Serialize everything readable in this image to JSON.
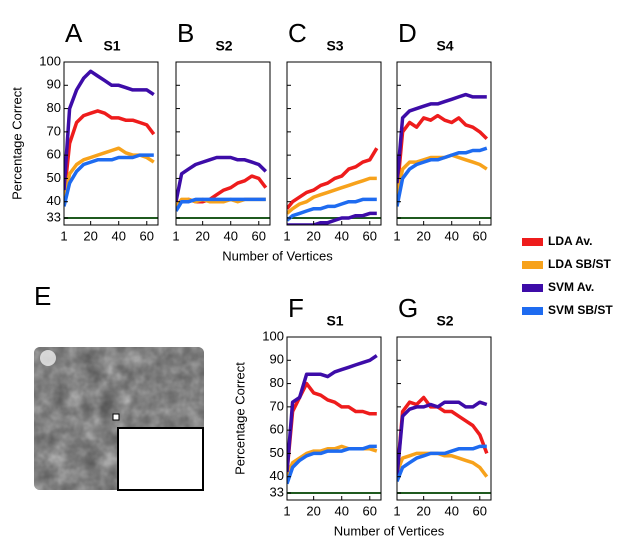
{
  "chart_data": [
    {
      "type": "line",
      "panel": "A",
      "title": "S1",
      "ylabel": "Percentage Correct",
      "xlabel": "Number of Vertices",
      "ytick_labels": true,
      "x": [
        1,
        5,
        10,
        15,
        20,
        25,
        30,
        35,
        40,
        45,
        50,
        55,
        60,
        65
      ],
      "xlim": [
        1,
        68
      ],
      "xticks": [
        1,
        20,
        40,
        60
      ],
      "ylim": [
        30,
        100
      ],
      "yticks": [
        33,
        40,
        50,
        60,
        70,
        80,
        90,
        100
      ],
      "chance": 33,
      "chance_color": "#1f5a1f",
      "series": [
        {
          "name": "LDA Av.",
          "color": "#ee1c1c",
          "values": [
            42,
            65,
            74,
            77,
            78,
            79,
            78,
            76,
            76,
            75,
            75,
            74,
            73,
            69
          ]
        },
        {
          "name": "LDA SB/ST",
          "color": "#f7a21b",
          "values": [
            40,
            52,
            56,
            58,
            59,
            60,
            61,
            62,
            63,
            61,
            60,
            60,
            59,
            57
          ]
        },
        {
          "name": "SVM Av.",
          "color": "#3d0ca8",
          "values": [
            45,
            80,
            88,
            93,
            96,
            94,
            92,
            90,
            90,
            89,
            88,
            88,
            88,
            86
          ]
        },
        {
          "name": "SVM SB/ST",
          "color": "#1e6bf0",
          "values": [
            38,
            48,
            53,
            56,
            57,
            58,
            58,
            58,
            59,
            59,
            59,
            60,
            60,
            60
          ]
        }
      ]
    },
    {
      "type": "line",
      "panel": "B",
      "title": "S2",
      "ytick_labels": false,
      "x": [
        1,
        5,
        10,
        15,
        20,
        25,
        30,
        35,
        40,
        45,
        50,
        55,
        60,
        65
      ],
      "xlim": [
        1,
        68
      ],
      "xticks": [
        1,
        20,
        40,
        60
      ],
      "ylim": [
        30,
        100
      ],
      "yticks": [
        33,
        40,
        50,
        60,
        70,
        80,
        90,
        100
      ],
      "chance": 33,
      "chance_color": "#1f5a1f",
      "series": [
        {
          "color": "#ee1c1c",
          "values": [
            38,
            40,
            41,
            40,
            40,
            41,
            43,
            45,
            46,
            48,
            49,
            51,
            50,
            46
          ]
        },
        {
          "color": "#f7a21b",
          "values": [
            38,
            41,
            41,
            40,
            41,
            40,
            40,
            40,
            41,
            40,
            41,
            41,
            41,
            41
          ]
        },
        {
          "color": "#3d0ca8",
          "values": [
            40,
            52,
            54,
            56,
            57,
            58,
            59,
            59,
            59,
            58,
            58,
            57,
            56,
            53
          ]
        },
        {
          "color": "#1e6bf0",
          "values": [
            36,
            40,
            40,
            41,
            41,
            41,
            41,
            41,
            41,
            41,
            41,
            41,
            41,
            41
          ]
        }
      ]
    },
    {
      "type": "line",
      "panel": "C",
      "title": "S3",
      "ytick_labels": false,
      "x": [
        1,
        5,
        10,
        15,
        20,
        25,
        30,
        35,
        40,
        45,
        50,
        55,
        60,
        65
      ],
      "xlim": [
        1,
        68
      ],
      "xticks": [
        1,
        20,
        40,
        60
      ],
      "ylim": [
        30,
        100
      ],
      "yticks": [
        33,
        40,
        50,
        60,
        70,
        80,
        90,
        100
      ],
      "chance": 33,
      "chance_color": "#1f5a1f",
      "series": [
        {
          "color": "#ee1c1c",
          "values": [
            37,
            40,
            42,
            44,
            45,
            47,
            48,
            50,
            51,
            54,
            55,
            57,
            58,
            63
          ]
        },
        {
          "color": "#f7a21b",
          "values": [
            35,
            37,
            39,
            40,
            42,
            43,
            44,
            45,
            46,
            47,
            48,
            49,
            50,
            50
          ]
        },
        {
          "color": "#3d0ca8",
          "values": [
            30,
            30,
            30,
            30,
            30,
            31,
            31,
            32,
            33,
            33,
            34,
            34,
            35,
            35
          ]
        },
        {
          "color": "#1e6bf0",
          "values": [
            32,
            34,
            35,
            36,
            37,
            37,
            38,
            38,
            39,
            40,
            40,
            41,
            41,
            41
          ]
        }
      ]
    },
    {
      "type": "line",
      "panel": "D",
      "title": "S4",
      "ytick_labels": false,
      "x": [
        1,
        5,
        10,
        15,
        20,
        25,
        30,
        35,
        40,
        45,
        50,
        55,
        60,
        65
      ],
      "xlim": [
        1,
        68
      ],
      "xticks": [
        1,
        20,
        40,
        60
      ],
      "ylim": [
        30,
        100
      ],
      "yticks": [
        33,
        40,
        50,
        60,
        70,
        80,
        90,
        100
      ],
      "chance": 33,
      "chance_color": "#1f5a1f",
      "series": [
        {
          "color": "#ee1c1c",
          "values": [
            44,
            70,
            74,
            72,
            76,
            75,
            77,
            75,
            74,
            76,
            73,
            72,
            70,
            67
          ]
        },
        {
          "color": "#f7a21b",
          "values": [
            43,
            54,
            57,
            57,
            58,
            59,
            59,
            59,
            60,
            59,
            58,
            57,
            56,
            54
          ]
        },
        {
          "color": "#3d0ca8",
          "values": [
            48,
            76,
            79,
            80,
            81,
            82,
            82,
            83,
            84,
            85,
            86,
            85,
            85,
            85
          ]
        },
        {
          "color": "#1e6bf0",
          "values": [
            38,
            50,
            54,
            56,
            57,
            58,
            58,
            59,
            60,
            61,
            61,
            62,
            62,
            63
          ]
        }
      ]
    },
    {
      "type": "line",
      "panel": "F",
      "title": "S1",
      "ylabel": "Percentage Correct",
      "xlabel": "Number of Vertices",
      "ytick_labels": true,
      "x": [
        1,
        5,
        10,
        15,
        20,
        25,
        30,
        35,
        40,
        45,
        50,
        55,
        60,
        65
      ],
      "xlim": [
        1,
        68
      ],
      "xticks": [
        1,
        20,
        40,
        60
      ],
      "ylim": [
        30,
        100
      ],
      "yticks": [
        33,
        40,
        50,
        60,
        70,
        80,
        90,
        100
      ],
      "chance": 33,
      "chance_color": "#1f5a1f",
      "series": [
        {
          "color": "#ee1c1c",
          "values": [
            42,
            68,
            74,
            80,
            76,
            75,
            73,
            72,
            70,
            70,
            68,
            68,
            67,
            67
          ]
        },
        {
          "color": "#f7a21b",
          "values": [
            40,
            46,
            48,
            50,
            51,
            51,
            52,
            52,
            53,
            52,
            52,
            52,
            52,
            51
          ]
        },
        {
          "color": "#3d0ca8",
          "values": [
            42,
            72,
            74,
            84,
            84,
            84,
            83,
            85,
            86,
            87,
            88,
            89,
            90,
            92
          ]
        },
        {
          "color": "#1e6bf0",
          "values": [
            37,
            44,
            47,
            49,
            50,
            50,
            51,
            51,
            51,
            52,
            52,
            52,
            53,
            53
          ]
        }
      ]
    },
    {
      "type": "line",
      "panel": "G",
      "title": "S2",
      "ytick_labels": false,
      "x": [
        1,
        5,
        10,
        15,
        20,
        25,
        30,
        35,
        40,
        45,
        50,
        55,
        60,
        65
      ],
      "xlim": [
        1,
        68
      ],
      "xticks": [
        1,
        20,
        40,
        60
      ],
      "ylim": [
        30,
        100
      ],
      "yticks": [
        33,
        40,
        50,
        60,
        70,
        80,
        90,
        100
      ],
      "chance": 33,
      "chance_color": "#1f5a1f",
      "series": [
        {
          "color": "#ee1c1c",
          "values": [
            40,
            68,
            72,
            71,
            74,
            70,
            70,
            68,
            68,
            66,
            64,
            62,
            58,
            50
          ]
        },
        {
          "color": "#f7a21b",
          "values": [
            42,
            48,
            49,
            50,
            50,
            50,
            50,
            49,
            49,
            48,
            47,
            46,
            44,
            40
          ]
        },
        {
          "color": "#3d0ca8",
          "values": [
            40,
            66,
            69,
            70,
            70,
            71,
            70,
            72,
            72,
            72,
            70,
            70,
            72,
            71
          ]
        },
        {
          "color": "#1e6bf0",
          "values": [
            38,
            44,
            46,
            48,
            49,
            50,
            50,
            50,
            51,
            52,
            52,
            52,
            53,
            53
          ]
        }
      ]
    }
  ],
  "panel_e": {
    "label": "E"
  }
}
